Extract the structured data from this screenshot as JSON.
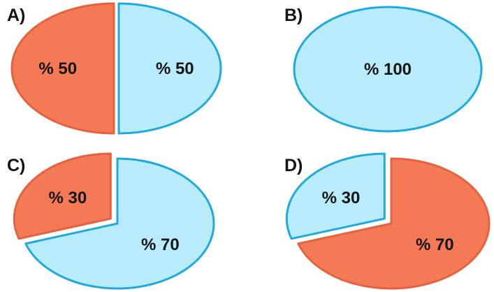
{
  "colors": {
    "blue_fill": "#b8ecfb",
    "blue_stroke": "#1fa9e1",
    "orange_fill": "#f47a55",
    "orange_stroke": "#e6613e"
  },
  "chart_data": [
    {
      "type": "pie",
      "panel_label": "A)",
      "slices": [
        {
          "label": "% 50",
          "value": 50,
          "color": "blue",
          "exploded": false
        },
        {
          "label": "% 50",
          "value": 50,
          "color": "orange",
          "exploded": true
        }
      ]
    },
    {
      "type": "pie",
      "panel_label": "B)",
      "slices": [
        {
          "label": "% 100",
          "value": 100,
          "color": "blue",
          "exploded": false
        }
      ]
    },
    {
      "type": "pie",
      "panel_label": "C)",
      "slices": [
        {
          "label": "% 70",
          "value": 70,
          "color": "blue",
          "exploded": false
        },
        {
          "label": "% 30",
          "value": 30,
          "color": "orange",
          "exploded": true
        }
      ]
    },
    {
      "type": "pie",
      "panel_label": "D)",
      "slices": [
        {
          "label": "% 70",
          "value": 70,
          "color": "orange",
          "exploded": false
        },
        {
          "label": "% 30",
          "value": 30,
          "color": "blue",
          "exploded": true
        }
      ]
    }
  ]
}
